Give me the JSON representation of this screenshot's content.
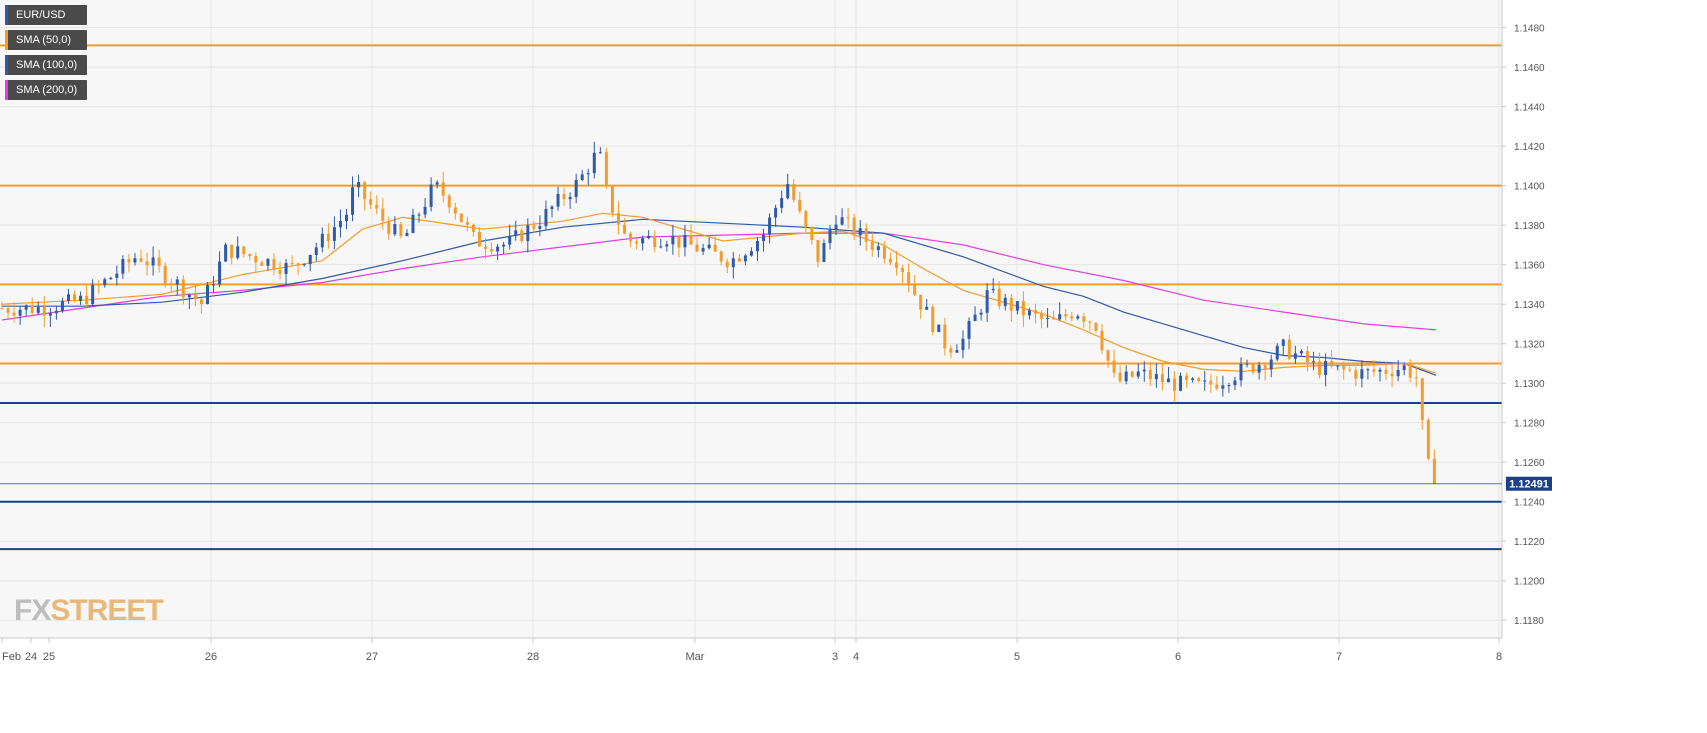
{
  "legend": [
    {
      "label": "EUR/USD",
      "color": "#2e5aa8"
    },
    {
      "label": "SMA (50,0)",
      "color": "#f39c2c"
    },
    {
      "label": "SMA (100,0)",
      "color": "#2e5aa8"
    },
    {
      "label": "SMA (200,0)",
      "color": "#e040e0"
    }
  ],
  "brand": {
    "part1": "FX",
    "part2": "STREET"
  },
  "chart_data": {
    "type": "candlestick",
    "symbol": "EUR/USD",
    "timeframe_labels": [
      "Feb",
      "24",
      "25",
      "26",
      "27",
      "28",
      "Mar",
      "3",
      "4",
      "5",
      "6",
      "7",
      "8"
    ],
    "y_axis": {
      "ticks": [
        "1.1480",
        "1.1460",
        "1.1440",
        "1.1420",
        "1.1400",
        "1.1380",
        "1.1360",
        "1.1340",
        "1.1320",
        "1.1300",
        "1.1280",
        "1.1260",
        "1.1240",
        "1.1220",
        "1.1200",
        "1.1180"
      ],
      "range": [
        1.1171,
        1.1494
      ]
    },
    "last_price": "1.12491",
    "horizontal_levels": [
      {
        "value": 1.1471,
        "color": "#f39c2c"
      },
      {
        "value": 1.14,
        "color": "#f39c2c"
      },
      {
        "value": 1.135,
        "color": "#f39c2c"
      },
      {
        "value": 1.131,
        "color": "#f39c2c"
      },
      {
        "value": 1.129,
        "color": "#1c3f8a"
      },
      {
        "value": 1.124,
        "color": "#1c3f8a"
      },
      {
        "value": 1.1216,
        "color": "#1c3f8a"
      }
    ],
    "price_anchors": [
      [
        0,
        1.1338
      ],
      [
        0.5,
        1.1338
      ],
      [
        1,
        1.1342
      ],
      [
        1.7,
        1.1365
      ],
      [
        2.2,
        1.135
      ],
      [
        2.5,
        1.134
      ],
      [
        2.8,
        1.1368
      ],
      [
        3.3,
        1.1362
      ],
      [
        3.6,
        1.1358
      ],
      [
        4.0,
        1.1372
      ],
      [
        4.3,
        1.1386
      ],
      [
        4.4,
        1.14
      ],
      [
        4.7,
        1.1385
      ],
      [
        5.0,
        1.1372
      ],
      [
        5.4,
        1.14
      ],
      [
        5.6,
        1.1392
      ],
      [
        5.9,
        1.1372
      ],
      [
        6.3,
        1.137
      ],
      [
        6.7,
        1.1382
      ],
      [
        7.2,
        1.1402
      ],
      [
        7.45,
        1.1418
      ],
      [
        7.55,
        1.1395
      ],
      [
        7.8,
        1.1372
      ],
      [
        8.3,
        1.1374
      ],
      [
        8.7,
        1.1368
      ],
      [
        9.1,
        1.1362
      ],
      [
        9.5,
        1.1375
      ],
      [
        9.8,
        1.1402
      ],
      [
        10.0,
        1.138
      ],
      [
        10.2,
        1.1362
      ],
      [
        10.4,
        1.1385
      ],
      [
        10.8,
        1.1372
      ],
      [
        11.2,
        1.1362
      ],
      [
        11.4,
        1.1345
      ],
      [
        11.8,
        1.1318
      ],
      [
        12.0,
        1.1322
      ],
      [
        12.3,
        1.1345
      ],
      [
        12.8,
        1.1335
      ],
      [
        13.1,
        1.133
      ],
      [
        13.4,
        1.1337
      ],
      [
        13.65,
        1.133
      ],
      [
        13.9,
        1.13
      ],
      [
        14.2,
        1.1305
      ],
      [
        14.6,
        1.13
      ],
      [
        15.0,
        1.1298
      ],
      [
        15.4,
        1.1305
      ],
      [
        15.8,
        1.1312
      ],
      [
        16.0,
        1.1318
      ],
      [
        16.4,
        1.1308
      ],
      [
        17.0,
        1.1305
      ],
      [
        17.5,
        1.1308
      ],
      [
        17.65,
        1.1304
      ],
      [
        17.72,
        1.128
      ],
      [
        17.8,
        1.1258
      ],
      [
        17.88,
        1.1249
      ]
    ],
    "sma_50": [
      [
        0,
        1.134
      ],
      [
        1,
        1.1342
      ],
      [
        2,
        1.1345
      ],
      [
        3,
        1.1355
      ],
      [
        4,
        1.1362
      ],
      [
        4.5,
        1.1378
      ],
      [
        5,
        1.1384
      ],
      [
        6,
        1.1378
      ],
      [
        7,
        1.1382
      ],
      [
        7.5,
        1.1386
      ],
      [
        8,
        1.1384
      ],
      [
        9,
        1.1372
      ],
      [
        10,
        1.1376
      ],
      [
        10.5,
        1.1377
      ],
      [
        11,
        1.137
      ],
      [
        11.5,
        1.1358
      ],
      [
        12,
        1.1347
      ],
      [
        12.5,
        1.1341
      ],
      [
        13,
        1.1335
      ],
      [
        13.5,
        1.1327
      ],
      [
        14,
        1.1318
      ],
      [
        14.5,
        1.1311
      ],
      [
        15,
        1.1307
      ],
      [
        15.5,
        1.1306
      ],
      [
        16,
        1.1308
      ],
      [
        16.5,
        1.1309
      ],
      [
        17,
        1.1309
      ],
      [
        17.5,
        1.131
      ],
      [
        17.6,
        1.1309
      ],
      [
        17.9,
        1.1305
      ]
    ],
    "sma_100": [
      [
        0,
        1.1339
      ],
      [
        1,
        1.1339
      ],
      [
        2,
        1.1341
      ],
      [
        3,
        1.1346
      ],
      [
        4,
        1.1353
      ],
      [
        5,
        1.1362
      ],
      [
        6,
        1.1372
      ],
      [
        7,
        1.1379
      ],
      [
        8,
        1.1383
      ],
      [
        9,
        1.1381
      ],
      [
        10,
        1.1379
      ],
      [
        11,
        1.1376
      ],
      [
        12,
        1.1364
      ],
      [
        13,
        1.1349
      ],
      [
        13.5,
        1.1344
      ],
      [
        14,
        1.1336
      ],
      [
        14.5,
        1.133
      ],
      [
        15,
        1.1324
      ],
      [
        15.5,
        1.1318
      ],
      [
        16,
        1.1314
      ],
      [
        16.5,
        1.1313
      ],
      [
        17,
        1.1311
      ],
      [
        17.5,
        1.131
      ],
      [
        17.9,
        1.1304
      ]
    ],
    "sma_200": [
      [
        0,
        1.1332
      ],
      [
        1,
        1.1338
      ],
      [
        2,
        1.1344
      ],
      [
        3,
        1.1347
      ],
      [
        4,
        1.1351
      ],
      [
        5,
        1.1358
      ],
      [
        6,
        1.1364
      ],
      [
        7,
        1.1369
      ],
      [
        8,
        1.1374
      ],
      [
        9,
        1.1375
      ],
      [
        10,
        1.1376
      ],
      [
        11,
        1.1376
      ],
      [
        12,
        1.137
      ],
      [
        13,
        1.136
      ],
      [
        14,
        1.1352
      ],
      [
        15,
        1.1342
      ],
      [
        16,
        1.1336
      ],
      [
        17,
        1.133
      ],
      [
        17.9,
        1.1327
      ]
    ]
  }
}
